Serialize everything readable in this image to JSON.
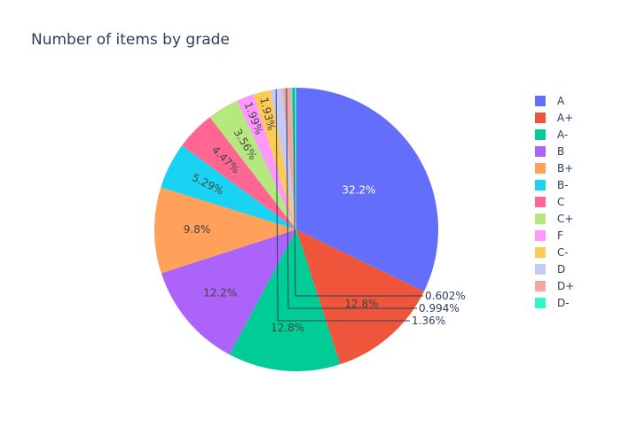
{
  "chart_data": {
    "type": "pie",
    "title": "Number of items by grade",
    "categories": [
      "A",
      "A+",
      "A-",
      "B",
      "B+",
      "B-",
      "C",
      "C+",
      "F",
      "C-",
      "D",
      "D+",
      "D-"
    ],
    "values": [
      32.2,
      12.8,
      12.8,
      12.2,
      9.8,
      5.29,
      4.47,
      3.56,
      1.99,
      1.93,
      1.36,
      0.994,
      0.602
    ],
    "labels": [
      "32.2%",
      "12.8%",
      "12.8%",
      "12.2%",
      "9.8%",
      "5.29%",
      "4.47%",
      "3.56%",
      "1.99%",
      "1.93%",
      "1.36%",
      "0.994%",
      "0.602%"
    ],
    "colors": [
      "#636efa",
      "#EF553B",
      "#00cc96",
      "#ab63fa",
      "#FFA15A",
      "#19d3f3",
      "#FF6692",
      "#B6E880",
      "#FF97FF",
      "#FECB52",
      "#c6c9f5",
      "#f0a8a0",
      "#33f5c8"
    ],
    "legend_position": "right"
  }
}
